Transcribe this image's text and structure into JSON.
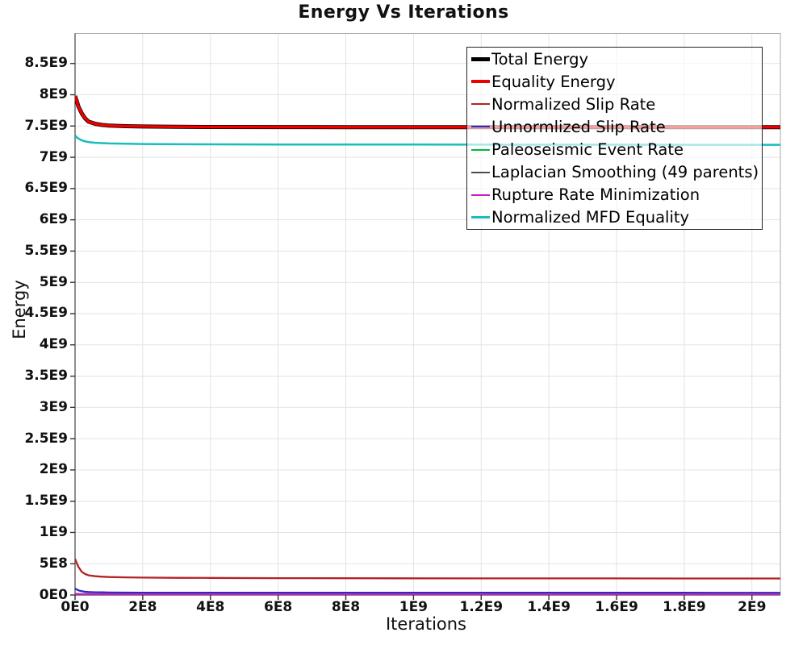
{
  "title": "Energy Vs Iterations",
  "chart_data": {
    "type": "line",
    "title": "Energy Vs Iterations",
    "xlabel": "Iterations",
    "ylabel": "Energy",
    "xlim": [
      0,
      2084000000.0
    ],
    "ylim": [
      0,
      8980000000.0
    ],
    "grid": true,
    "legend_position": "top-right",
    "style": {
      "grid_color": "#e3e3e3",
      "frame_color": "#aaaaaa",
      "axis_color": "#444444",
      "tick_color": "#333333",
      "background": "#ffffff"
    },
    "x_ticks": [
      {
        "value": 0,
        "label": "0E0"
      },
      {
        "value": 200000000.0,
        "label": "2E8"
      },
      {
        "value": 400000000.0,
        "label": "4E8"
      },
      {
        "value": 600000000.0,
        "label": "6E8"
      },
      {
        "value": 800000000.0,
        "label": "8E8"
      },
      {
        "value": 1000000000.0,
        "label": "1E9"
      },
      {
        "value": 1200000000.0,
        "label": "1.2E9"
      },
      {
        "value": 1400000000.0,
        "label": "1.4E9"
      },
      {
        "value": 1600000000.0,
        "label": "1.6E9"
      },
      {
        "value": 1800000000.0,
        "label": "1.8E9"
      },
      {
        "value": 2000000000.0,
        "label": "2E9"
      }
    ],
    "y_ticks": [
      {
        "value": 0,
        "label": "0E0"
      },
      {
        "value": 500000000.0,
        "label": "5E8"
      },
      {
        "value": 1000000000.0,
        "label": "1E9"
      },
      {
        "value": 1500000000.0,
        "label": "1.5E9"
      },
      {
        "value": 2000000000.0,
        "label": "2E9"
      },
      {
        "value": 2500000000.0,
        "label": "2.5E9"
      },
      {
        "value": 3000000000.0,
        "label": "3E9"
      },
      {
        "value": 3500000000.0,
        "label": "3.5E9"
      },
      {
        "value": 4000000000.0,
        "label": "4E9"
      },
      {
        "value": 4500000000.0,
        "label": "4.5E9"
      },
      {
        "value": 5000000000.0,
        "label": "5E9"
      },
      {
        "value": 5500000000.0,
        "label": "5.5E9"
      },
      {
        "value": 6000000000.0,
        "label": "6E9"
      },
      {
        "value": 6500000000.0,
        "label": "6.5E9"
      },
      {
        "value": 7000000000.0,
        "label": "7E9"
      },
      {
        "value": 7500000000.0,
        "label": "7.5E9"
      },
      {
        "value": 8000000000.0,
        "label": "8E9"
      },
      {
        "value": 8500000000.0,
        "label": "8.5E9"
      }
    ],
    "x": [
      0,
      5000000.0,
      10000000.0,
      20000000.0,
      30000000.0,
      40000000.0,
      60000000.0,
      80000000.0,
      100000000.0,
      150000000.0,
      200000000.0,
      300000000.0,
      400000000.0,
      600000000.0,
      800000000.0,
      1000000000.0,
      1200000000.0,
      1400000000.0,
      1600000000.0,
      1800000000.0,
      2000000000.0,
      2084000000.0
    ],
    "series": [
      {
        "name": "Total Energy",
        "color": "#000000",
        "line_width": 5,
        "values": [
          7980000000.0,
          7900000000.0,
          7810000000.0,
          7700000000.0,
          7620000000.0,
          7570000000.0,
          7535000000.0,
          7517000000.0,
          7507000000.0,
          7497000000.0,
          7492000000.0,
          7487000000.0,
          7485000000.0,
          7483000000.0,
          7482000000.0,
          7481000000.0,
          7481000000.0,
          7480000000.0,
          7480000000.0,
          7480000000.0,
          7480000000.0,
          7480000000.0
        ]
      },
      {
        "name": "Equality Energy",
        "color": "#ee0000",
        "line_width": 3.5,
        "values": [
          7980000000.0,
          7900000000.0,
          7810000000.0,
          7700000000.0,
          7620000000.0,
          7570000000.0,
          7535000000.0,
          7517000000.0,
          7507000000.0,
          7497000000.0,
          7492000000.0,
          7487000000.0,
          7485000000.0,
          7483000000.0,
          7482000000.0,
          7481000000.0,
          7481000000.0,
          7480000000.0,
          7480000000.0,
          7480000000.0,
          7480000000.0,
          7480000000.0
        ]
      },
      {
        "name": "Normalized Slip Rate",
        "color": "#b42222",
        "line_width": 2.3,
        "values": [
          580000000.0,
          510000000.0,
          450000000.0,
          370000000.0,
          335000000.0,
          315000000.0,
          300000000.0,
          293000000.0,
          288000000.0,
          282000000.0,
          279000000.0,
          275000000.0,
          273000000.0,
          270000000.0,
          268000000.0,
          267000000.0,
          266000000.0,
          265000000.0,
          265000000.0,
          264000000.0,
          264000000.0,
          264000000.0
        ]
      },
      {
        "name": "Unnormlized Slip Rate",
        "color": "#2a2ac0",
        "line_width": 2.3,
        "values": [
          103000000.0,
          88000000.0,
          75000000.0,
          60000000.0,
          52000000.0,
          48000000.0,
          44000000.0,
          42000000.0,
          40500000.0,
          39000000.0,
          38000000.0,
          37200000.0,
          36800000.0,
          36300000.0,
          36000000.0,
          35800000.0,
          35700000.0,
          35600000.0,
          35500000.0,
          35500000.0,
          35400000.0,
          35400000.0
        ]
      },
      {
        "name": "Paleoseismic Event Rate",
        "color": "#00bb33",
        "line_width": 2.3,
        "values": [
          4000000.0,
          3800000.0,
          3600000.0,
          3400000.0,
          3300000.0,
          3200000.0,
          3200000.0,
          3100000.0,
          3100000.0,
          3000000.0,
          3000000.0,
          3000000.0,
          2900000.0,
          2900000.0,
          2900000.0,
          2900000.0,
          2900000.0,
          2900000.0,
          2900000.0,
          2900000.0,
          2900000.0,
          2900000.0
        ]
      },
      {
        "name": "Laplacian Smoothing (49 parents)",
        "color": "#4d4d4d",
        "line_width": 2.3,
        "values": [
          1500000.0,
          1400000.0,
          1400000.0,
          1300000.0,
          1300000.0,
          1300000.0,
          1200000.0,
          1200000.0,
          1200000.0,
          1200000.0,
          1200000.0,
          1200000.0,
          1200000.0,
          1200000.0,
          1200000.0,
          1200000.0,
          1200000.0,
          1200000.0,
          1200000.0,
          1200000.0,
          1200000.0,
          1200000.0
        ]
      },
      {
        "name": "Rupture Rate Minimization",
        "color": "#c322c3",
        "line_width": 2.3,
        "values": [
          20000000.0,
          18500000.0,
          17200000.0,
          15800000.0,
          15000000.0,
          14500000.0,
          14100000.0,
          13900000.0,
          13700000.0,
          13500000.0,
          13400000.0,
          13300000.0,
          13200000.0,
          13100000.0,
          13100000.0,
          13000000.0,
          13000000.0,
          13000000.0,
          13000000.0,
          13000000.0,
          13000000.0,
          13000000.0
        ]
      },
      {
        "name": "Normalized MFD Equality",
        "color": "#18bdbd",
        "line_width": 2.5,
        "values": [
          7350000000.0,
          7320000000.0,
          7300000000.0,
          7270000000.0,
          7253000000.0,
          7243000000.0,
          7232000000.0,
          7226000000.0,
          7222000000.0,
          7216000000.0,
          7213000000.0,
          7209000000.0,
          7207000000.0,
          7205000000.0,
          7204000000.0,
          7203000000.0,
          7202000000.0,
          7201000000.0,
          7201000000.0,
          7200000000.0,
          7200000000.0,
          7200000000.0
        ]
      }
    ]
  }
}
